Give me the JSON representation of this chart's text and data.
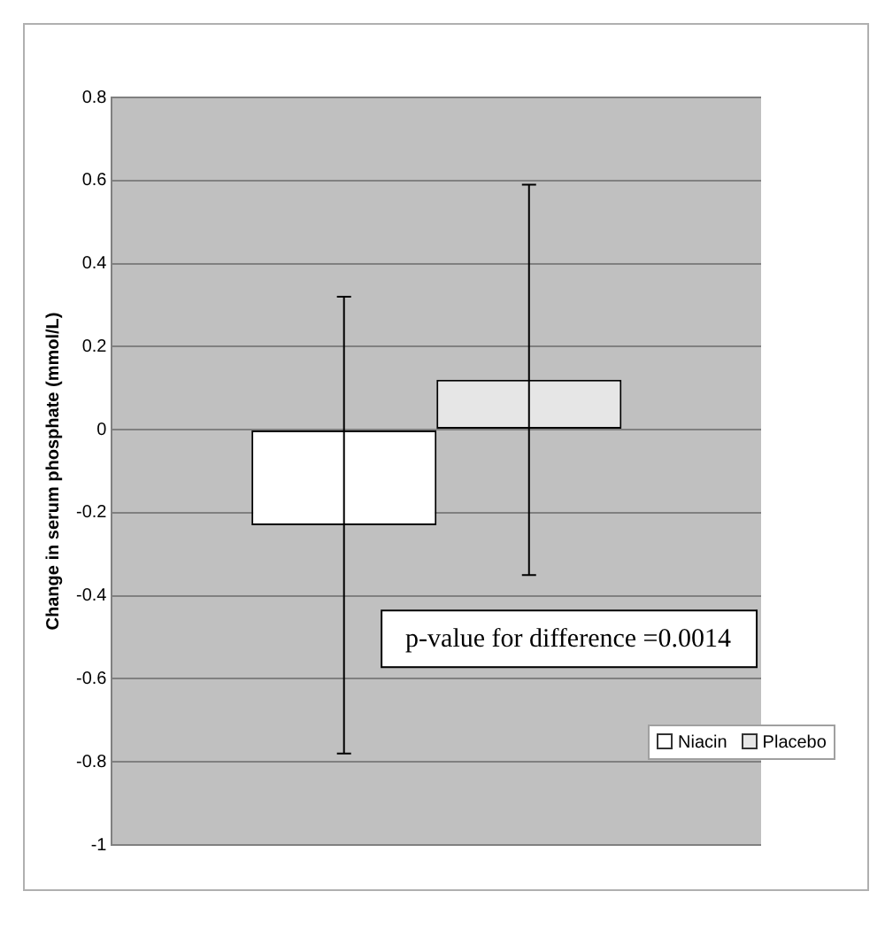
{
  "chart_data": {
    "type": "bar",
    "ylabel": "Change in serum phosphate (mmol/L)",
    "categories": [
      null
    ],
    "series": [
      {
        "name": "Niacin",
        "color": "#ffffff",
        "values": [
          -0.23
        ],
        "errors": [
          [
            -0.78,
            0.32
          ]
        ]
      },
      {
        "name": "Placebo",
        "color": "#e6e6e6",
        "values": [
          0.12
        ],
        "errors": [
          [
            -0.35,
            0.59
          ]
        ]
      }
    ],
    "ylim": [
      -1,
      0.8
    ],
    "yticks": [
      -1,
      -0.8,
      -0.6,
      -0.4,
      -0.2,
      0,
      0.2,
      0.4,
      0.6,
      0.8
    ],
    "grid": "y",
    "legend": "bottom right",
    "annotations": [
      "p-value for difference =0.0014"
    ]
  }
}
